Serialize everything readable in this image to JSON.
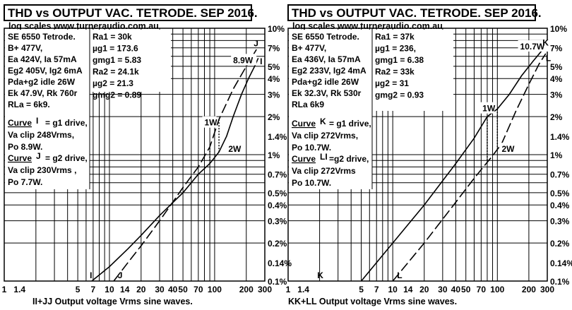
{
  "chart_data": [
    {
      "type": "line",
      "title": "THD vs OUTPUT VAC. TETRODE. SEP 2016.",
      "subtitle": "log scales   www.turneraudio.com.au",
      "xlabel": "II+JJ Output voltage Vrms sine waves.",
      "x_scale": "log",
      "y_scale": "log",
      "xlim": [
        1,
        300
      ],
      "ylim": [
        0.1,
        10
      ],
      "x_ticks": [
        "1",
        "1.4",
        "5",
        "7",
        "10",
        "14",
        "20",
        "30",
        "40",
        "50",
        "70",
        "100",
        "200",
        "300"
      ],
      "y_ticks": [
        "0.1%",
        "0.14%",
        "0.2%",
        "0.3%",
        "0.4%",
        "0.5%",
        "0.7%",
        "1%",
        "1.4%",
        "2%",
        "3%",
        "4%",
        "5%",
        "7%",
        "10%"
      ],
      "grid": true,
      "info_left": [
        "SE 6550 Tetrode.",
        "B+ 477V,",
        "Ea 424V, Ia 57mA",
        "Eg2 405V, Ig2 6mA",
        "Pda+g2 idle 26W",
        "Ek 47.9V, Rk 760r",
        "RLa = 6k9."
      ],
      "info_right": [
        "Ra1 = 30k",
        "µg1 = 173.6",
        "gmg1 = 5.83",
        "Ra2 = 24.1k",
        "µg2 = 21.3",
        "gmg2 = 0.89"
      ],
      "curve_notes": [
        {
          "head": "Curve",
          "key": "I",
          "text": "= g1 drive,",
          "lines": [
            "Va clip 248Vrms,",
            "Po 8.9W."
          ]
        },
        {
          "head": "Curve",
          "key": "J",
          "text": "= g2 drive,",
          "lines": [
            "Va clip 230Vrms ,",
            "Po 7.7W."
          ]
        }
      ],
      "series": [
        {
          "name": "I",
          "style": "solid",
          "x": [
            6.8,
            10,
            15,
            20,
            30,
            50,
            70,
            90,
            110,
            130,
            150,
            180,
            210,
            240,
            260
          ],
          "y": [
            0.1,
            0.13,
            0.18,
            0.23,
            0.33,
            0.5,
            0.7,
            0.85,
            1.05,
            1.4,
            2.0,
            3.0,
            4.0,
            5.0,
            5.8
          ]
        },
        {
          "name": "J",
          "style": "dashed",
          "x": [
            11,
            15,
            20,
            30,
            40,
            50,
            70,
            90,
            110,
            150,
            200,
            250
          ],
          "y": [
            0.1,
            0.14,
            0.19,
            0.3,
            0.42,
            0.55,
            0.8,
            1.15,
            1.9,
            3.3,
            5.0,
            6.8
          ]
        }
      ],
      "annotations": [
        {
          "text": "1W",
          "x": 80,
          "y": 1.7
        },
        {
          "text": "2W",
          "x": 135,
          "y": 1.05
        },
        {
          "text": "8.9W",
          "x": 150,
          "y": 5.3
        },
        {
          "text": "I",
          "x": 6.5,
          "y": 0.105
        },
        {
          "text": "J",
          "x": 12,
          "y": 0.105
        },
        {
          "text": "J",
          "x": 235,
          "y": 7.2
        },
        {
          "text": "I",
          "x": 270,
          "y": 5.2
        }
      ]
    },
    {
      "type": "line",
      "title": "THD vs OUTPUT VAC. TETRODE. SEP 2016.",
      "subtitle": "log scales   www.turneraudio.com.au",
      "xlabel": "KK+LL  Output voltage Vrms sine waves.",
      "x_scale": "log",
      "y_scale": "log",
      "xlim": [
        1,
        300
      ],
      "ylim": [
        0.1,
        10
      ],
      "x_ticks": [
        "1",
        "1.4",
        "5",
        "7",
        "10",
        "14",
        "20",
        "30",
        "40",
        "50",
        "70",
        "100",
        "200",
        "300"
      ],
      "y_ticks": [
        "0.1%",
        "0.14%",
        "0.2%",
        "0.3%",
        "0.4%",
        "0.5%",
        "0.7%",
        "1%",
        "1.4%",
        "2%",
        "3%",
        "4%",
        "5%",
        "7%",
        "10%"
      ],
      "grid": true,
      "info_left": [
        "SE 6550 Tetrode.",
        "B+ 477V,",
        "Ea 436V, Ia 57mA",
        "Eg2 233V, Ig2 4mA",
        "Pda+g2 idle 26W",
        "Ek 32.3V, Rk 530r",
        "RLa 6k9"
      ],
      "info_right": [
        "Ra1 = 37k",
        "µg1 = 236,",
        "gmg1 = 6.38",
        "Ra2 = 33k",
        "µg2 = 31",
        "gmg2 = 0.93"
      ],
      "curve_notes": [
        {
          "head": "Curve",
          "key": "K",
          "text": "= g1 drive,",
          "lines": [
            "Va clip 272Vrms,",
            "Po 10.7W."
          ]
        },
        {
          "head": "Curve",
          "key": "LI",
          "text": "=g2 drive,",
          "lines": [
            "Va clip 272Vrms",
            "Po 10.7W."
          ]
        }
      ],
      "series": [
        {
          "name": "K",
          "style": "solid",
          "x": [
            5,
            10,
            20,
            40,
            60,
            80,
            100,
            130,
            170,
            220,
            280
          ],
          "y": [
            0.1,
            0.2,
            0.4,
            0.85,
            1.35,
            2.0,
            2.3,
            3.0,
            4.2,
            5.5,
            7.0
          ]
        },
        {
          "name": "L",
          "style": "dashed",
          "x": [
            10,
            20,
            40,
            60,
            90,
            110,
            150,
            200,
            250,
            290
          ],
          "y": [
            0.1,
            0.2,
            0.42,
            0.65,
            0.98,
            1.22,
            2.2,
            3.6,
            5.2,
            6.3
          ]
        }
      ],
      "annotations": [
        {
          "text": "1W",
          "x": 72,
          "y": 2.2
        },
        {
          "text": "2W",
          "x": 110,
          "y": 1.05
        },
        {
          "text": "10.7W",
          "x": 165,
          "y": 6.8
        },
        {
          "text": "K",
          "x": 1.9,
          "y": 0.105
        },
        {
          "text": "L",
          "x": 11,
          "y": 0.105
        },
        {
          "text": "K",
          "x": 270,
          "y": 7.3
        },
        {
          "text": "L",
          "x": 290,
          "y": 5.5
        }
      ]
    }
  ]
}
